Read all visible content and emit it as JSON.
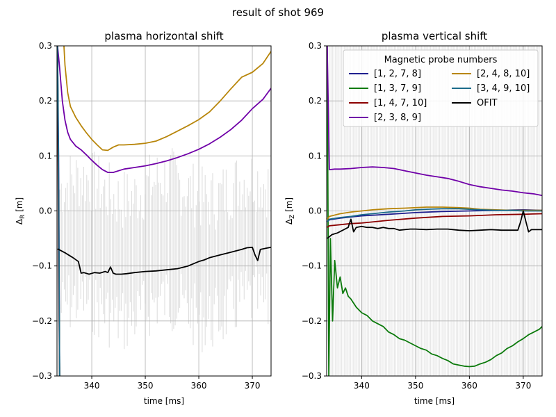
{
  "figure": {
    "suptitle": "result of shot 969"
  },
  "chart_data": [
    {
      "type": "line",
      "title": "plasma horizontal shift",
      "xlabel": "time [ms]",
      "ylabel": "Δ_R [m]",
      "ylabel_main": "Δ",
      "ylabel_sub": "R",
      "ylabel_unit": " [m]",
      "xlim": [
        333.5,
        373.5
      ],
      "ylim": [
        -0.3,
        0.3
      ],
      "xticks": [
        340,
        350,
        360,
        370
      ],
      "yticks": [
        -0.3,
        -0.2,
        -0.1,
        0.0,
        0.1,
        0.2,
        0.3
      ],
      "xtick_labels": [
        "340",
        "350",
        "360",
        "370"
      ],
      "ytick_labels": [
        "−0.3",
        "−0.2",
        "−0.1",
        "0.0",
        "0.1",
        "0.2",
        "0.3"
      ],
      "grid": true,
      "series": [
        {
          "name": "[1, 2, 7, 8]",
          "color": "#1f1f8f",
          "x": [
            333.6,
            333.8,
            334.0
          ],
          "y": [
            0.3,
            0.1,
            -0.3
          ]
        },
        {
          "name": "[1, 3, 7, 9]",
          "color": "#0b7a0b",
          "x": [
            333.6,
            333.8,
            334.0
          ],
          "y": [
            0.3,
            0.0,
            -0.3
          ]
        },
        {
          "name": "[1, 4, 7, 10]",
          "color": "#8b0000",
          "x": [
            333.6,
            333.8,
            334.0
          ],
          "y": [
            0.3,
            -0.1,
            -0.3
          ]
        },
        {
          "name": "[2, 3, 8, 9]",
          "color": "#7000a8",
          "x": [
            333.6,
            334.0,
            334.5,
            335.0,
            335.5,
            336.0,
            337.0,
            338.0,
            339.0,
            340.0,
            341.0,
            342.0,
            343.0,
            344.0,
            346.0,
            348.0,
            350.0,
            352.0,
            354.0,
            356.0,
            358.0,
            360.0,
            362.0,
            364.0,
            366.0,
            368.0,
            370.0,
            372.0,
            373.5
          ],
          "y": [
            0.3,
            0.26,
            0.2,
            0.165,
            0.143,
            0.13,
            0.118,
            0.111,
            0.102,
            0.092,
            0.083,
            0.075,
            0.07,
            0.07,
            0.076,
            0.079,
            0.082,
            0.086,
            0.091,
            0.097,
            0.104,
            0.112,
            0.122,
            0.134,
            0.148,
            0.165,
            0.186,
            0.203,
            0.223
          ]
        },
        {
          "name": "[2, 4, 8, 10]",
          "color": "#b8860b",
          "x": [
            334.8,
            335.0,
            335.5,
            336.0,
            337.0,
            338.0,
            339.0,
            340.0,
            341.0,
            342.0,
            343.0,
            344.0,
            345.0,
            346.0,
            348.0,
            350.0,
            352.0,
            354.0,
            356.0,
            358.0,
            360.0,
            362.0,
            364.0,
            366.0,
            368.0,
            370.0,
            372.0,
            373.5
          ],
          "y": [
            0.3,
            0.265,
            0.215,
            0.19,
            0.17,
            0.155,
            0.142,
            0.13,
            0.12,
            0.111,
            0.11,
            0.116,
            0.12,
            0.12,
            0.121,
            0.123,
            0.127,
            0.135,
            0.145,
            0.155,
            0.166,
            0.18,
            0.2,
            0.222,
            0.243,
            0.252,
            0.268,
            0.29
          ]
        },
        {
          "name": "[3, 4, 9, 10]",
          "color": "#1a6b8a",
          "x": [
            333.6,
            333.8,
            334.0
          ],
          "y": [
            0.3,
            0.05,
            -0.3
          ]
        },
        {
          "name": "OFIT",
          "color": "#000000",
          "x": [
            333.6,
            335.0,
            336.5,
            337.5,
            338.0,
            338.5,
            339.5,
            340.5,
            341.5,
            342.5,
            343.0,
            343.5,
            344.0,
            344.5,
            345.5,
            346.5,
            348.0,
            350.0,
            352.0,
            354.0,
            356.0,
            358.0,
            360.0,
            361.0,
            362.0,
            364.0,
            366.0,
            368.0,
            369.0,
            370.0,
            370.5,
            371.0,
            371.5,
            372.5,
            373.5
          ],
          "y": [
            -0.069,
            -0.076,
            -0.085,
            -0.092,
            -0.113,
            -0.112,
            -0.115,
            -0.112,
            -0.113,
            -0.11,
            -0.112,
            -0.102,
            -0.113,
            -0.115,
            -0.115,
            -0.114,
            -0.112,
            -0.11,
            -0.109,
            -0.107,
            -0.105,
            -0.1,
            -0.092,
            -0.089,
            -0.085,
            -0.08,
            -0.075,
            -0.07,
            -0.067,
            -0.066,
            -0.08,
            -0.09,
            -0.07,
            -0.068,
            -0.066
          ]
        }
      ]
    },
    {
      "type": "line",
      "title": "plasma vertical shift",
      "xlabel": "time [ms]",
      "ylabel": "Δ_Z [m]",
      "ylabel_main": "Δ",
      "ylabel_sub": "Z",
      "ylabel_unit": " [m]",
      "xlim": [
        333.5,
        373.5
      ],
      "ylim": [
        -0.3,
        0.3
      ],
      "xticks": [
        340,
        350,
        360,
        370
      ],
      "yticks": [
        -0.3,
        -0.2,
        -0.1,
        0.0,
        0.1,
        0.2,
        0.3
      ],
      "xtick_labels": [
        "340",
        "350",
        "360",
        "370"
      ],
      "ytick_labels": [
        "−0.3",
        "−0.2",
        "−0.1",
        "0.0",
        "0.1",
        "0.2",
        "0.3"
      ],
      "grid": true,
      "legend": {
        "title": "Magnetic probe numbers",
        "placement": "upper right",
        "ncol": 2
      },
      "series": [
        {
          "name": "[1, 2, 7, 8]",
          "color": "#1f1f8f",
          "x": [
            333.6,
            334.0,
            336.0,
            338.0,
            340.0,
            345.0,
            350.0,
            355.0,
            360.0,
            365.0,
            370.0,
            373.5
          ],
          "y": [
            -0.02,
            -0.016,
            -0.013,
            -0.011,
            -0.009,
            -0.006,
            -0.003,
            -0.001,
            0.0,
            0.001,
            0.002,
            0.001
          ]
        },
        {
          "name": "[1, 3, 7, 9]",
          "color": "#0b7a0b",
          "x": [
            333.6,
            333.9,
            334.2,
            334.6,
            335.0,
            335.5,
            336.0,
            336.5,
            337.0,
            337.5,
            338.0,
            339.0,
            340.0,
            341.0,
            342.0,
            343.0,
            344.0,
            345.0,
            346.0,
            347.0,
            348.0,
            349.0,
            350.0,
            351.0,
            352.0,
            353.0,
            354.0,
            355.0,
            356.0,
            357.0,
            358.0,
            359.0,
            360.0,
            361.0,
            362.0,
            363.0,
            364.0,
            365.0,
            366.0,
            367.0,
            368.0,
            369.0,
            370.0,
            371.0,
            372.0,
            373.0,
            373.5
          ],
          "y": [
            0.3,
            -0.3,
            -0.05,
            -0.2,
            -0.09,
            -0.14,
            -0.12,
            -0.15,
            -0.14,
            -0.155,
            -0.16,
            -0.175,
            -0.185,
            -0.19,
            -0.2,
            -0.205,
            -0.21,
            -0.22,
            -0.225,
            -0.232,
            -0.235,
            -0.24,
            -0.245,
            -0.25,
            -0.253,
            -0.26,
            -0.263,
            -0.268,
            -0.272,
            -0.278,
            -0.28,
            -0.282,
            -0.283,
            -0.282,
            -0.278,
            -0.275,
            -0.27,
            -0.263,
            -0.258,
            -0.25,
            -0.245,
            -0.238,
            -0.232,
            -0.225,
            -0.22,
            -0.215,
            -0.21
          ]
        },
        {
          "name": "[1, 4, 7, 10]",
          "color": "#8b0000",
          "x": [
            333.6,
            334.0,
            336.0,
            338.0,
            340.0,
            345.0,
            350.0,
            355.0,
            360.0,
            365.0,
            370.0,
            373.5
          ],
          "y": [
            -0.03,
            -0.027,
            -0.025,
            -0.023,
            -0.022,
            -0.017,
            -0.013,
            -0.01,
            -0.009,
            -0.007,
            -0.006,
            -0.005
          ]
        },
        {
          "name": "[2, 3, 8, 9]",
          "color": "#7000a8",
          "x": [
            333.6,
            334.0,
            335.0,
            336.0,
            338.0,
            340.0,
            342.0,
            344.0,
            346.0,
            348.0,
            350.0,
            352.0,
            354.0,
            356.0,
            358.0,
            360.0,
            362.0,
            364.0,
            366.0,
            368.0,
            370.0,
            372.0,
            373.5
          ],
          "y": [
            0.3,
            0.075,
            0.076,
            0.076,
            0.077,
            0.079,
            0.08,
            0.079,
            0.077,
            0.073,
            0.069,
            0.065,
            0.062,
            0.059,
            0.054,
            0.048,
            0.044,
            0.041,
            0.038,
            0.036,
            0.033,
            0.031,
            0.028
          ]
        },
        {
          "name": "[2, 4, 8, 10]",
          "color": "#b8860b",
          "x": [
            333.6,
            334.0,
            336.0,
            338.0,
            340.0,
            342.0,
            345.0,
            348.0,
            350.0,
            352.0,
            355.0,
            358.0,
            360.0,
            362.0,
            365.0,
            368.0,
            370.0,
            372.0,
            373.5
          ],
          "y": [
            -0.015,
            -0.01,
            -0.005,
            -0.002,
            0.0,
            0.002,
            0.004,
            0.005,
            0.006,
            0.007,
            0.007,
            0.006,
            0.005,
            0.003,
            0.002,
            0.001,
            0.001,
            0.001,
            0.001
          ]
        },
        {
          "name": "[3, 4, 9, 10]",
          "color": "#1a6b8a",
          "x": [
            333.6,
            334.0,
            336.0,
            338.0,
            340.0,
            342.0,
            345.0,
            348.0,
            350.0,
            352.0,
            355.0,
            358.0,
            360.0,
            362.0,
            365.0,
            368.0,
            370.0,
            372.0,
            373.5
          ],
          "y": [
            -0.02,
            -0.015,
            -0.012,
            -0.01,
            -0.007,
            -0.005,
            -0.002,
            0.0,
            0.002,
            0.003,
            0.004,
            0.004,
            0.003,
            0.002,
            0.001,
            0.001,
            0.0,
            0.0,
            0.0
          ]
        },
        {
          "name": "OFIT",
          "color": "#000000",
          "x": [
            333.6,
            334.5,
            335.5,
            336.5,
            337.5,
            338.0,
            338.5,
            339.0,
            340.0,
            341.0,
            342.0,
            343.0,
            344.0,
            345.0,
            346.0,
            347.0,
            348.0,
            349.0,
            350.0,
            352.0,
            354.0,
            356.0,
            358.0,
            360.0,
            362.0,
            364.0,
            366.0,
            368.0,
            369.0,
            369.5,
            370.0,
            370.5,
            371.0,
            371.5,
            372.5,
            373.5
          ],
          "y": [
            -0.05,
            -0.043,
            -0.04,
            -0.035,
            -0.03,
            -0.015,
            -0.038,
            -0.03,
            -0.028,
            -0.03,
            -0.03,
            -0.032,
            -0.03,
            -0.032,
            -0.032,
            -0.035,
            -0.034,
            -0.033,
            -0.033,
            -0.034,
            -0.033,
            -0.033,
            -0.035,
            -0.036,
            -0.035,
            -0.034,
            -0.035,
            -0.035,
            -0.035,
            -0.02,
            0.0,
            -0.02,
            -0.038,
            -0.034,
            -0.034,
            -0.034
          ]
        }
      ]
    }
  ]
}
